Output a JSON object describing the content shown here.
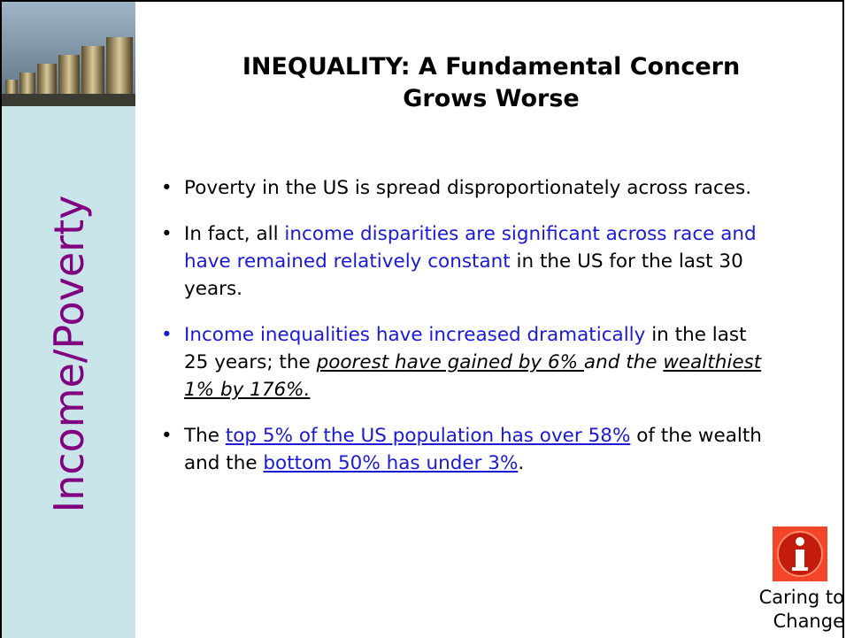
{
  "sidebar": {
    "label": "Income/Poverty",
    "color": "#800080"
  },
  "title": {
    "lines": [
      "INEQUALITY:  A Fundamental Concern",
      "Grows Worse"
    ]
  },
  "bullets": [
    {
      "marker_color": "#000000",
      "runs": [
        {
          "text": "Poverty in the US is spread disproportionately across races."
        }
      ]
    },
    {
      "marker_color": "#000000",
      "runs": [
        {
          "text": "In fact, all "
        },
        {
          "text": "income disparities are significant across race and have remained relatively constant",
          "color": "#1a1ad6"
        },
        {
          "text": " in the US for the last 30 years."
        }
      ]
    },
    {
      "marker_color": "#1a1ad6",
      "runs": [
        {
          "text": "Income inequalities have increased dramatically",
          "color": "#1a1ad6"
        },
        {
          "text": " in the last 25 years; the "
        },
        {
          "text": "poorest have gained by 6% ",
          "italic": true,
          "underline": true
        },
        {
          "text": "and the ",
          "italic": true
        },
        {
          "text": "wealthiest 1% by 176%.",
          "italic": true,
          "underline": true
        }
      ]
    },
    {
      "marker_color": "#000000",
      "runs": [
        {
          "text": "The "
        },
        {
          "text": "top 5% of the US population has over 58%",
          "color": "#1a1ad6",
          "underline": true,
          "link": true
        },
        {
          "text": " of the wealth and the "
        },
        {
          "text": "bottom 50% has under 3%",
          "color": "#1a1ad6",
          "underline": true,
          "link": true
        },
        {
          "text": "."
        }
      ]
    }
  ],
  "caption": {
    "lines": [
      "Caring to",
      "Change"
    ]
  }
}
